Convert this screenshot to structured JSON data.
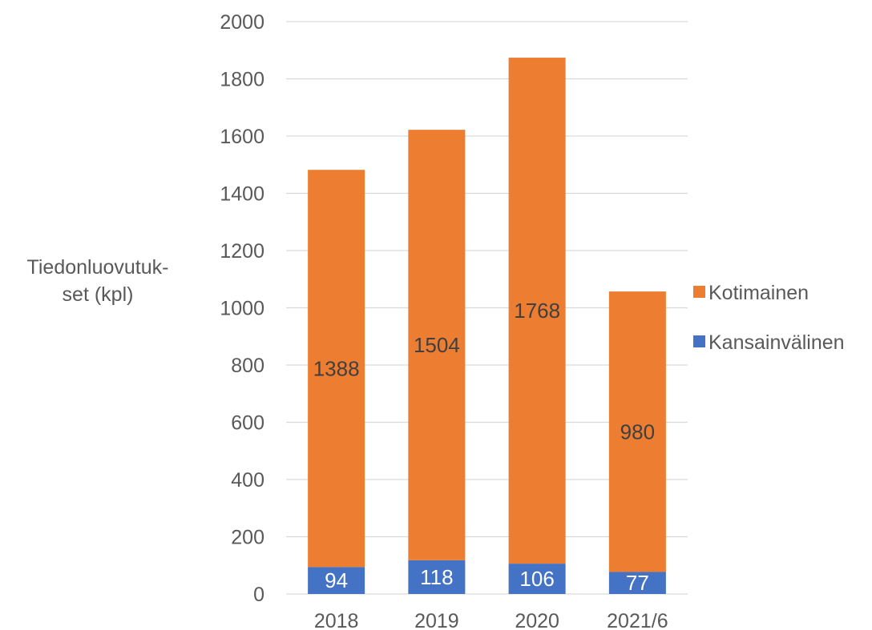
{
  "chart_data": {
    "type": "bar",
    "stacked": true,
    "categories": [
      "2018",
      "2019",
      "2020",
      "2021/6"
    ],
    "series": [
      {
        "name": "Kansainvälinen",
        "values": [
          94,
          118,
          106,
          77
        ],
        "color": "#4472c4",
        "label_color": "#ffffff"
      },
      {
        "name": "Kotimainen",
        "values": [
          1388,
          1504,
          1768,
          980
        ],
        "color": "#ed7d31",
        "label_color": "#404040"
      }
    ],
    "ylabel_lines": [
      "Tiedonluovutuk-",
      "set (kpl)"
    ],
    "ylim": [
      0,
      2000
    ],
    "yticks": [
      0,
      200,
      400,
      600,
      800,
      1000,
      1200,
      1400,
      1600,
      1800,
      2000
    ],
    "grid": true,
    "gridline_color": "#d9d9d9",
    "legend_position": "right",
    "legend_order": [
      "Kotimainen",
      "Kansainvälinen"
    ]
  }
}
